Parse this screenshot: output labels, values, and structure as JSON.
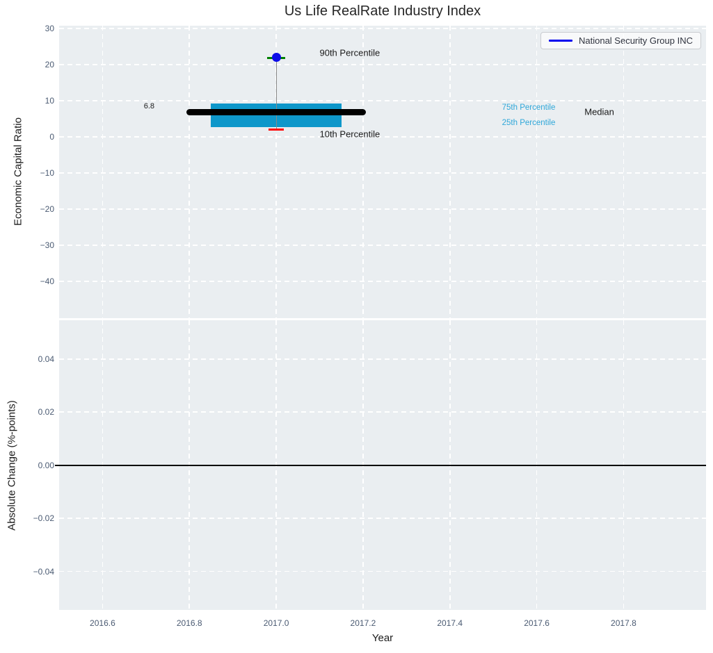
{
  "title": "Us Life RealRate Industry Index",
  "legend": {
    "label": "National Security Group INC"
  },
  "colors": {
    "plot_bg": "#eaeef1",
    "grid": "#ffffff",
    "box_fill": "#0e97ca",
    "median_line": "#000000",
    "whisker_line": "#888888",
    "cap_90th": "#008000",
    "cap_10th": "#ff0000",
    "company_marker": "#0d0de8",
    "legend_line": "#0000ee",
    "tick_label": "#4a5a72",
    "percentile_label": "#2fa7d9",
    "zero_line": "#000000"
  },
  "chart_data": [
    {
      "type": "boxplot",
      "panel": "top",
      "title": "Us Life RealRate Industry Index",
      "ylabel": "Economic Capital Ratio",
      "ylim": [
        -50.2,
        30.8
      ],
      "yticks": [
        {
          "v": 30,
          "label": "30"
        },
        {
          "v": 20,
          "label": "20"
        },
        {
          "v": 10,
          "label": "10"
        },
        {
          "v": 0,
          "label": "0"
        },
        {
          "v": -10,
          "label": "−10"
        },
        {
          "v": -20,
          "label": "−20"
        },
        {
          "v": -30,
          "label": "−30"
        },
        {
          "v": -40,
          "label": "−40"
        }
      ],
      "xlim": [
        2016.5,
        2017.99
      ],
      "xticks": [
        {
          "v": 2016.6,
          "label": "2016.6"
        },
        {
          "v": 2016.8,
          "label": "2016.8"
        },
        {
          "v": 2017.0,
          "label": "2017.0"
        },
        {
          "v": 2017.2,
          "label": "2017.2"
        },
        {
          "v": 2017.4,
          "label": "2017.4"
        },
        {
          "v": 2017.6,
          "label": "2017.6"
        },
        {
          "v": 2017.8,
          "label": "2017.8"
        }
      ],
      "grid": "white dashed, on",
      "legend_position": "upper right",
      "box": {
        "x": 2017.0,
        "p10": 2.1,
        "p25": 2.7,
        "median": 6.8,
        "p75": 9.2,
        "p90": 21.9,
        "company_marker": 22.1,
        "box_x_span": [
          2016.85,
          2017.15
        ],
        "median_x_span": [
          2016.8,
          2017.2
        ]
      },
      "annotations": [
        {
          "text": "90th Percentile",
          "x": 2017.1,
          "y": 23.3,
          "color": "#1a1a1a",
          "size": 13
        },
        {
          "text": "10th Percentile",
          "x": 2017.1,
          "y": 0.8,
          "color": "#1a1a1a",
          "size": 13
        },
        {
          "text": "75th Percentile",
          "x": 2017.52,
          "y": 8.1,
          "color": "#2fa7d9",
          "size": 11.5
        },
        {
          "text": "25th Percentile",
          "x": 2017.52,
          "y": 3.9,
          "color": "#2fa7d9",
          "size": 11.5
        },
        {
          "text": "Median",
          "x": 2017.71,
          "y": 6.9,
          "color": "#1a1a1a",
          "size": 13
        },
        {
          "text": "6.8",
          "x": 2016.695,
          "y": 8.5,
          "color": "#1a1a1a",
          "size": 11
        }
      ]
    },
    {
      "type": "line",
      "panel": "bottom",
      "ylabel": "Absolute Change (%-points)",
      "xlabel": "Year",
      "ylim": [
        -0.0545,
        0.0546
      ],
      "yticks": [
        {
          "v": 0.04,
          "label": "0.04"
        },
        {
          "v": 0.02,
          "label": "0.02"
        },
        {
          "v": 0.0,
          "label": "0.00"
        },
        {
          "v": -0.02,
          "label": "−0.02"
        },
        {
          "v": -0.04,
          "label": "−0.04"
        }
      ],
      "zero_line": true,
      "series": [
        {
          "name": "National Security Group INC",
          "x": [
            2017.0
          ],
          "y": [
            0.0
          ]
        }
      ]
    }
  ]
}
